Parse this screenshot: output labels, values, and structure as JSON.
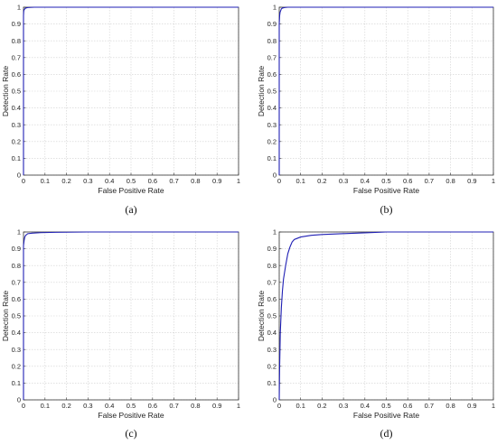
{
  "chart_data": [
    {
      "type": "line",
      "caption": "(a)",
      "xlabel": "False Positive Rate",
      "ylabel": "Detection Rate",
      "xlim": [
        0,
        1
      ],
      "ylim": [
        0,
        1
      ],
      "xticks": [
        "0",
        "0.1",
        "0.2",
        "0.3",
        "0.4",
        "0.5",
        "0.6",
        "0.7",
        "0.8",
        "0.9",
        "1"
      ],
      "yticks": [
        "0",
        "0.1",
        "0.2",
        "0.3",
        "0.4",
        "0.5",
        "0.6",
        "0.7",
        "0.8",
        "0.9",
        "1"
      ],
      "grid": true,
      "line_color": "#1f1fb4",
      "series": [
        {
          "x": [
            0,
            0,
            0.001,
            0.003,
            0.006,
            0.01,
            0.02,
            0.05,
            1
          ],
          "y": [
            0,
            0.95,
            0.975,
            0.985,
            0.99,
            0.995,
            0.998,
            1,
            1
          ]
        }
      ]
    },
    {
      "type": "line",
      "caption": "(b)",
      "xlabel": "False Positive Rate",
      "ylabel": "Detection Rate",
      "xlim": [
        0,
        1
      ],
      "ylim": [
        0,
        1
      ],
      "xticks": [
        "0",
        "0.1",
        "0.2",
        "0.3",
        "0.4",
        "0.5",
        "0.6",
        "0.7",
        "0.8",
        "0.9",
        "1"
      ],
      "yticks": [
        "0",
        "0.1",
        "0.2",
        "0.3",
        "0.4",
        "0.5",
        "0.6",
        "0.7",
        "0.8",
        "0.9",
        "1"
      ],
      "grid": true,
      "line_color": "#1f1fb4",
      "series": [
        {
          "x": [
            0,
            0,
            0.002,
            0.004,
            0.007,
            0.01,
            0.015,
            0.025,
            0.04,
            1
          ],
          "y": [
            0,
            0.9,
            0.95,
            0.97,
            0.98,
            0.99,
            0.995,
            0.998,
            1,
            1
          ]
        }
      ]
    },
    {
      "type": "line",
      "caption": "(c)",
      "xlabel": "False Positive Rate",
      "ylabel": "Detection Rate",
      "xlim": [
        0,
        1
      ],
      "ylim": [
        0,
        1
      ],
      "xticks": [
        "0",
        "0.1",
        "0.2",
        "0.3",
        "0.4",
        "0.5",
        "0.6",
        "0.7",
        "0.8",
        "0.9",
        "1"
      ],
      "yticks": [
        "0",
        "0.1",
        "0.2",
        "0.3",
        "0.4",
        "0.5",
        "0.6",
        "0.7",
        "0.8",
        "0.9",
        "1"
      ],
      "grid": true,
      "line_color": "#1f1fb4",
      "series": [
        {
          "x": [
            0,
            0,
            0.003,
            0.006,
            0.01,
            0.02,
            0.04,
            0.08,
            0.15,
            0.3,
            1
          ],
          "y": [
            0,
            0.92,
            0.95,
            0.97,
            0.98,
            0.99,
            0.993,
            0.996,
            0.998,
            1,
            1
          ]
        }
      ]
    },
    {
      "type": "line",
      "caption": "(d)",
      "xlabel": "False Positive Rate",
      "ylabel": "Detection Rate",
      "xlim": [
        0,
        1
      ],
      "ylim": [
        0,
        1
      ],
      "xticks": [
        "0",
        "0.1",
        "0.2",
        "0.3",
        "0.4",
        "0.5",
        "0.6",
        "0.7",
        "0.8",
        "0.9",
        "1"
      ],
      "yticks": [
        "0",
        "0.1",
        "0.2",
        "0.3",
        "0.4",
        "0.5",
        "0.6",
        "0.7",
        "0.8",
        "0.9",
        "1"
      ],
      "grid": true,
      "line_color": "#1f1fb4",
      "series": [
        {
          "x": [
            0,
            0.002,
            0.005,
            0.01,
            0.015,
            0.02,
            0.03,
            0.04,
            0.05,
            0.06,
            0.07,
            0.08,
            0.1,
            0.15,
            0.2,
            0.3,
            0.4,
            0.5,
            1
          ],
          "y": [
            0,
            0.2,
            0.4,
            0.55,
            0.65,
            0.72,
            0.8,
            0.87,
            0.91,
            0.94,
            0.955,
            0.96,
            0.97,
            0.98,
            0.985,
            0.99,
            0.995,
            1,
            1
          ]
        }
      ]
    }
  ]
}
